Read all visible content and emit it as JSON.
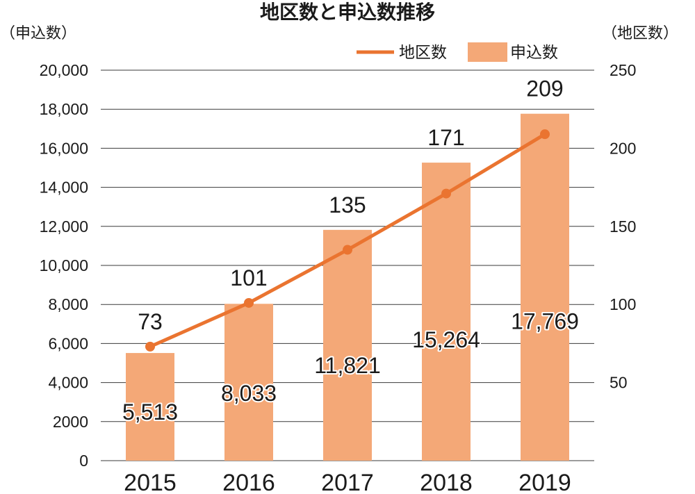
{
  "chart_data": {
    "type": "bar",
    "title": "地区数と申込数推移",
    "categories": [
      "2015",
      "2016",
      "2017",
      "2018",
      "2019"
    ],
    "y_left_label": "（申込数）",
    "y_right_label": "（地区数）",
    "y_left_ticks": [
      "0",
      "2000",
      "4,000",
      "6,000",
      "8,000",
      "10,000",
      "12,000",
      "14,000",
      "16,000",
      "18,000",
      "20,000"
    ],
    "y_right_ticks": [
      "50",
      "100",
      "150",
      "200",
      "250"
    ],
    "ylim_left": [
      0,
      20000
    ],
    "ylim_right": [
      0,
      250
    ],
    "grid": true,
    "legend_position": "top-right",
    "series": [
      {
        "name": "申込数",
        "type": "bar",
        "axis": "left",
        "color": "#f4a877",
        "values": [
          5513,
          8033,
          11821,
          15264,
          17769
        ],
        "labels": [
          "5,513",
          "8,033",
          "11,821",
          "15,264",
          "17,769"
        ]
      },
      {
        "name": "地区数",
        "type": "line",
        "axis": "right",
        "color": "#ea7430",
        "values": [
          73,
          101,
          135,
          171,
          209
        ],
        "labels": [
          "73",
          "101",
          "135",
          "171",
          "209"
        ]
      }
    ]
  }
}
